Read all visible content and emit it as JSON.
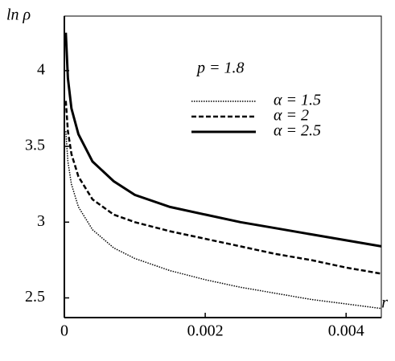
{
  "chart_data": {
    "type": "line",
    "y_label": "ln ρ",
    "x_label": "r",
    "annotation": "p = 1.8",
    "x": [
      2e-05,
      5e-05,
      0.0001,
      0.0002,
      0.0004,
      0.0007,
      0.001,
      0.0015,
      0.002,
      0.0025,
      0.003,
      0.0035,
      0.004,
      0.0045
    ],
    "series": [
      {
        "name": "α = 1.5",
        "color": "#000000",
        "dash": "1.5,1.5",
        "width": 1.5,
        "values": [
          3.6,
          3.4,
          3.25,
          3.1,
          2.95,
          2.83,
          2.76,
          2.68,
          2.62,
          2.57,
          2.53,
          2.49,
          2.46,
          2.43
        ]
      },
      {
        "name": "α = 2",
        "color": "#000000",
        "dash": "6,3",
        "width": 2.5,
        "values": [
          3.8,
          3.6,
          3.45,
          3.3,
          3.15,
          3.05,
          3.0,
          2.94,
          2.89,
          2.84,
          2.79,
          2.75,
          2.7,
          2.66
        ]
      },
      {
        "name": "α = 2.5",
        "color": "#000000",
        "dash": "none",
        "width": 3,
        "values": [
          4.25,
          3.95,
          3.75,
          3.58,
          3.4,
          3.27,
          3.18,
          3.1,
          3.05,
          3.0,
          2.96,
          2.92,
          2.88,
          2.84
        ]
      }
    ],
    "xlim": [
      0,
      0.0045
    ],
    "ylim": [
      2.37,
      4.36
    ],
    "xticks": [
      0,
      0.002,
      0.004
    ],
    "yticks": [
      2.5,
      3,
      3.5,
      4
    ]
  }
}
